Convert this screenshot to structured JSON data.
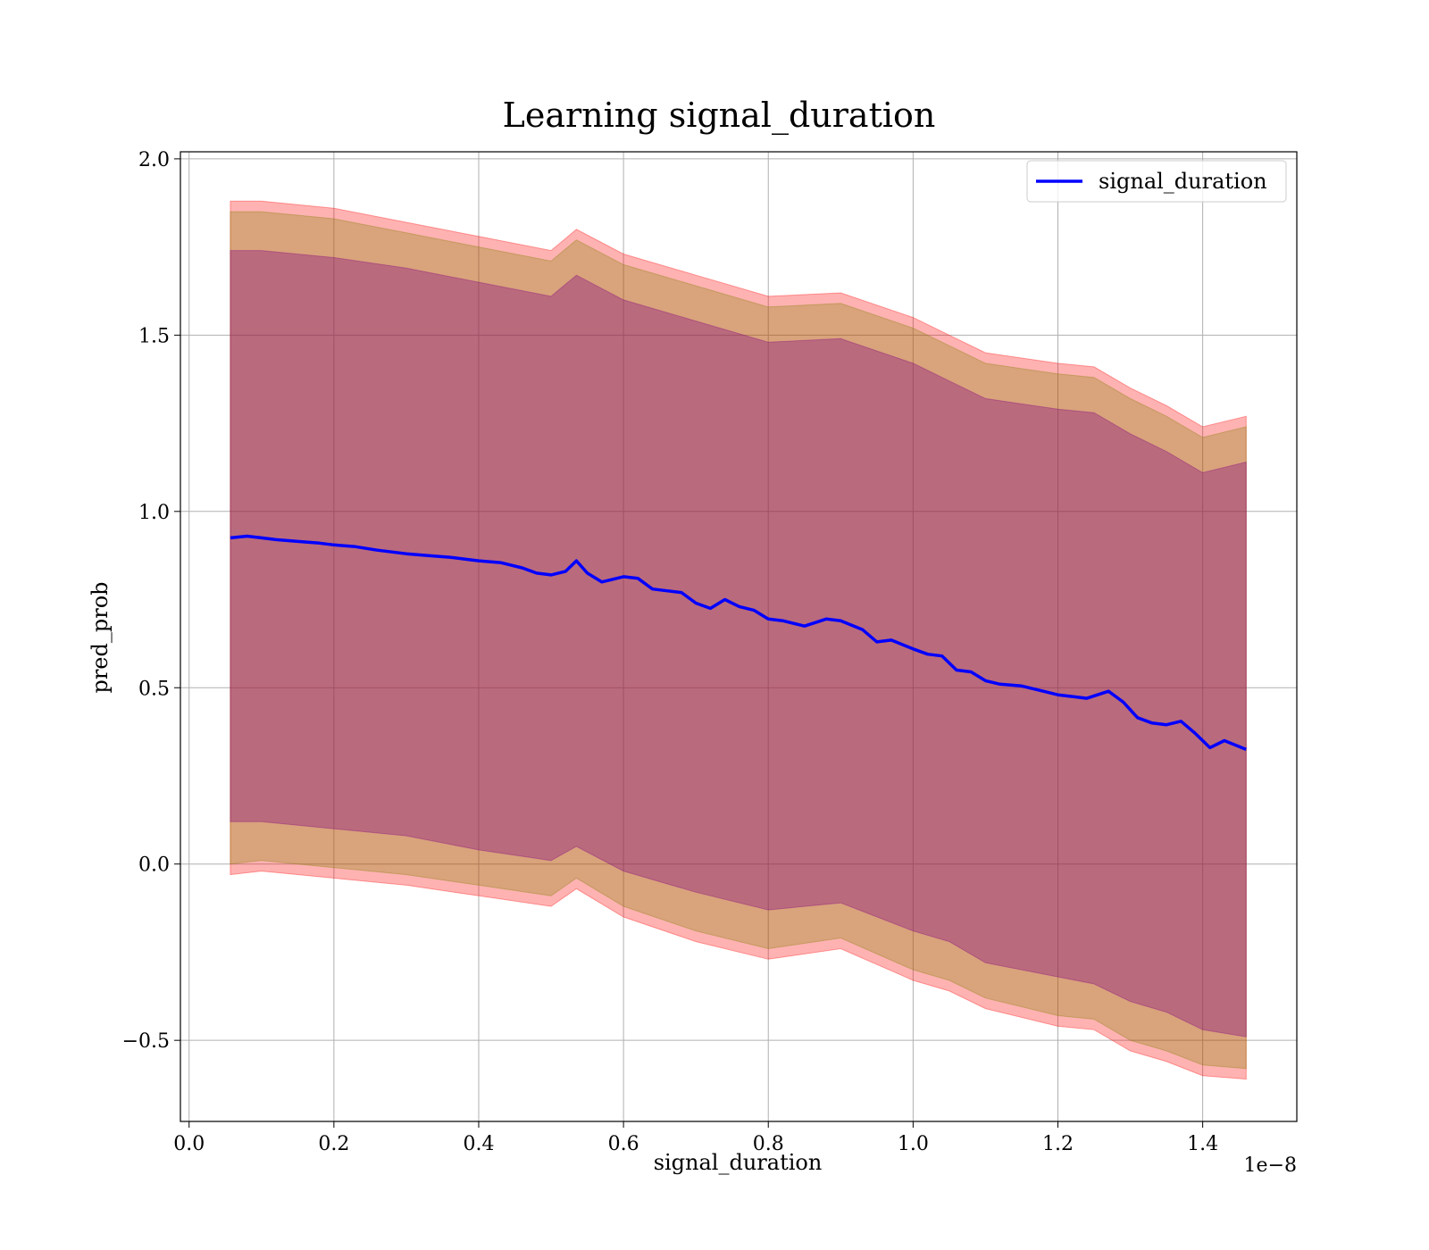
{
  "chart_data": {
    "type": "line",
    "title": "Learning signal_duration",
    "xlabel": "signal_duration",
    "ylabel": "pred_prob",
    "x_offset_label": "1e−8",
    "xlim": [
      -0.012,
      1.53
    ],
    "ylim": [
      -0.73,
      2.02
    ],
    "x_ticks": [
      0.0,
      0.2,
      0.4,
      0.6,
      0.8,
      1.0,
      1.2,
      1.4
    ],
    "x_tick_labels": [
      "0.0",
      "0.2",
      "0.4",
      "0.6",
      "0.8",
      "1.0",
      "1.2",
      "1.4"
    ],
    "y_ticks": [
      -0.5,
      0.0,
      0.5,
      1.0,
      1.5,
      2.0
    ],
    "y_tick_labels": [
      "−0.5",
      "0.0",
      "0.5",
      "1.0",
      "1.5",
      "2.0"
    ],
    "grid": true,
    "legend_position": "top-right",
    "series": [
      {
        "name": "signal_duration",
        "color": "#0000ff",
        "x": [
          0.057,
          0.08,
          0.1,
          0.12,
          0.15,
          0.18,
          0.2,
          0.23,
          0.26,
          0.3,
          0.33,
          0.36,
          0.4,
          0.43,
          0.46,
          0.48,
          0.5,
          0.52,
          0.535,
          0.55,
          0.57,
          0.6,
          0.62,
          0.64,
          0.66,
          0.68,
          0.7,
          0.72,
          0.74,
          0.76,
          0.78,
          0.8,
          0.82,
          0.85,
          0.88,
          0.9,
          0.93,
          0.95,
          0.97,
          1.0,
          1.02,
          1.04,
          1.06,
          1.08,
          1.1,
          1.12,
          1.15,
          1.18,
          1.2,
          1.22,
          1.24,
          1.27,
          1.29,
          1.31,
          1.33,
          1.35,
          1.37,
          1.39,
          1.41,
          1.43,
          1.46
        ],
        "y": [
          0.925,
          0.93,
          0.925,
          0.92,
          0.915,
          0.91,
          0.905,
          0.9,
          0.89,
          0.88,
          0.875,
          0.87,
          0.86,
          0.855,
          0.84,
          0.825,
          0.82,
          0.83,
          0.86,
          0.825,
          0.8,
          0.815,
          0.81,
          0.78,
          0.775,
          0.77,
          0.74,
          0.725,
          0.75,
          0.73,
          0.72,
          0.695,
          0.69,
          0.675,
          0.695,
          0.69,
          0.665,
          0.63,
          0.635,
          0.61,
          0.595,
          0.59,
          0.55,
          0.545,
          0.52,
          0.51,
          0.505,
          0.49,
          0.48,
          0.475,
          0.47,
          0.49,
          0.46,
          0.415,
          0.4,
          0.395,
          0.405,
          0.37,
          0.33,
          0.35,
          0.325
        ]
      }
    ],
    "bands": [
      {
        "name": "outer",
        "color": "#ff0000",
        "opacity": 0.3,
        "x": [
          0.057,
          0.1,
          0.2,
          0.3,
          0.4,
          0.5,
          0.535,
          0.6,
          0.7,
          0.8,
          0.9,
          1.0,
          1.05,
          1.1,
          1.2,
          1.25,
          1.3,
          1.35,
          1.4,
          1.46
        ],
        "upper": [
          1.88,
          1.88,
          1.86,
          1.82,
          1.78,
          1.74,
          1.8,
          1.73,
          1.67,
          1.61,
          1.62,
          1.55,
          1.5,
          1.45,
          1.42,
          1.41,
          1.35,
          1.3,
          1.24,
          1.27
        ],
        "lower": [
          -0.03,
          -0.02,
          -0.04,
          -0.06,
          -0.09,
          -0.12,
          -0.07,
          -0.15,
          -0.22,
          -0.27,
          -0.24,
          -0.33,
          -0.36,
          -0.41,
          -0.46,
          -0.47,
          -0.53,
          -0.56,
          -0.6,
          -0.61
        ]
      },
      {
        "name": "middle",
        "color": "#808000",
        "opacity": 0.3,
        "x": [
          0.057,
          0.1,
          0.2,
          0.3,
          0.4,
          0.5,
          0.535,
          0.6,
          0.7,
          0.8,
          0.9,
          1.0,
          1.05,
          1.1,
          1.2,
          1.25,
          1.3,
          1.35,
          1.4,
          1.46
        ],
        "upper": [
          1.85,
          1.85,
          1.83,
          1.79,
          1.75,
          1.71,
          1.77,
          1.7,
          1.64,
          1.58,
          1.59,
          1.52,
          1.47,
          1.42,
          1.39,
          1.38,
          1.32,
          1.27,
          1.21,
          1.24
        ],
        "lower": [
          0.0,
          0.01,
          -0.01,
          -0.03,
          -0.06,
          -0.09,
          -0.04,
          -0.12,
          -0.19,
          -0.24,
          -0.21,
          -0.3,
          -0.33,
          -0.38,
          -0.43,
          -0.44,
          -0.5,
          -0.53,
          -0.57,
          -0.58
        ]
      },
      {
        "name": "inner",
        "color": "#800080",
        "opacity": 0.35,
        "x": [
          0.057,
          0.1,
          0.2,
          0.3,
          0.4,
          0.5,
          0.535,
          0.6,
          0.7,
          0.8,
          0.9,
          1.0,
          1.05,
          1.1,
          1.2,
          1.25,
          1.3,
          1.35,
          1.4,
          1.46
        ],
        "upper": [
          1.74,
          1.74,
          1.72,
          1.69,
          1.65,
          1.61,
          1.67,
          1.6,
          1.54,
          1.48,
          1.49,
          1.42,
          1.37,
          1.32,
          1.29,
          1.28,
          1.22,
          1.17,
          1.11,
          1.14
        ],
        "lower": [
          0.12,
          0.12,
          0.1,
          0.08,
          0.04,
          0.01,
          0.05,
          -0.02,
          -0.08,
          -0.13,
          -0.11,
          -0.19,
          -0.22,
          -0.28,
          -0.32,
          -0.34,
          -0.39,
          -0.42,
          -0.47,
          -0.49
        ]
      }
    ]
  }
}
